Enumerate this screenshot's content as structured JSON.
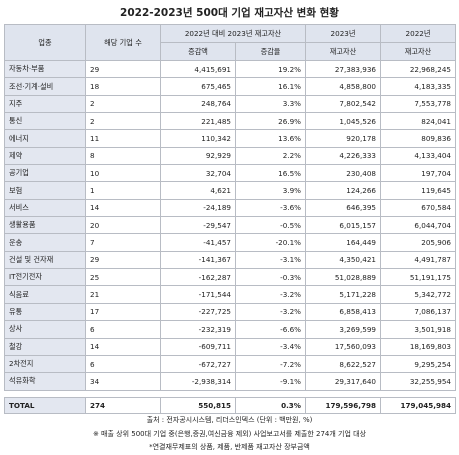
{
  "header": {
    "title": "2022-2023년 500대 기업 재고자산 변화 현황"
  },
  "table": {
    "columns": [
      "업종",
      "해당 기업 수",
      "2022년 대비 2023년 재고자산",
      "2023년",
      "2022년"
    ],
    "subcolumns": [
      "증감액",
      "증감율",
      "재고자산",
      "재고자산"
    ],
    "rows": [
      [
        "자동차·부품",
        "29",
        "4,415,691",
        "19.2%",
        "27,383,936",
        "22,968,245"
      ],
      [
        "조선·기계·설비",
        "18",
        "675,465",
        "16.1%",
        "4,858,800",
        "4,183,335"
      ],
      [
        "지주",
        "2",
        "248,764",
        "3.3%",
        "7,802,542",
        "7,553,778"
      ],
      [
        "통신",
        "2",
        "221,485",
        "26.9%",
        "1,045,526",
        "824,041"
      ],
      [
        "에너지",
        "11",
        "110,342",
        "13.6%",
        "920,178",
        "809,836"
      ],
      [
        "제약",
        "8",
        "92,929",
        "2.2%",
        "4,226,333",
        "4,133,404"
      ],
      [
        "공기업",
        "10",
        "32,704",
        "16.5%",
        "230,408",
        "197,704"
      ],
      [
        "보험",
        "1",
        "4,621",
        "3.9%",
        "124,266",
        "119,645"
      ],
      [
        "서비스",
        "14",
        "-24,189",
        "-3.6%",
        "646,395",
        "670,584"
      ],
      [
        "생활용품",
        "20",
        "-29,547",
        "-0.5%",
        "6,015,157",
        "6,044,704"
      ],
      [
        "운송",
        "7",
        "-41,457",
        "-20.1%",
        "164,449",
        "205,906"
      ],
      [
        "건설 및 건자재",
        "29",
        "-141,367",
        "-3.1%",
        "4,350,421",
        "4,491,787"
      ],
      [
        "IT전기전자",
        "25",
        "-162,287",
        "-0.3%",
        "51,028,889",
        "51,191,175"
      ],
      [
        "식음료",
        "21",
        "-171,544",
        "-3.2%",
        "5,171,228",
        "5,342,772"
      ],
      [
        "유통",
        "17",
        "-227,725",
        "-3.2%",
        "6,858,413",
        "7,086,137"
      ],
      [
        "상사",
        "6",
        "-232,319",
        "-6.6%",
        "3,269,599",
        "3,501,918"
      ],
      [
        "철강",
        "14",
        "-609,711",
        "-3.4%",
        "17,560,093",
        "18,169,803"
      ],
      [
        "2차전지",
        "6",
        "-672,727",
        "-7.2%",
        "8,622,527",
        "9,295,254"
      ],
      [
        "석유화학",
        "34",
        "-2,938,314",
        "-9.1%",
        "29,317,640",
        "32,255,954"
      ]
    ],
    "total": [
      "TOTAL",
      "274",
      "550,815",
      "0.3%",
      "179,596,798",
      "179,045,984"
    ]
  },
  "footer": {
    "source": "출처 : 전자공시시스템, 리더스인덱스 (단위 : 백만원, %)",
    "note1": "※ 매출 상위 500대 기업 중(은행,증권,여신금융 제외) 사업보고서를 제출한 274개 기업 대상",
    "note2": "*연결재무제표의 상품, 제품, 반제품 재고자산 장부금액"
  }
}
